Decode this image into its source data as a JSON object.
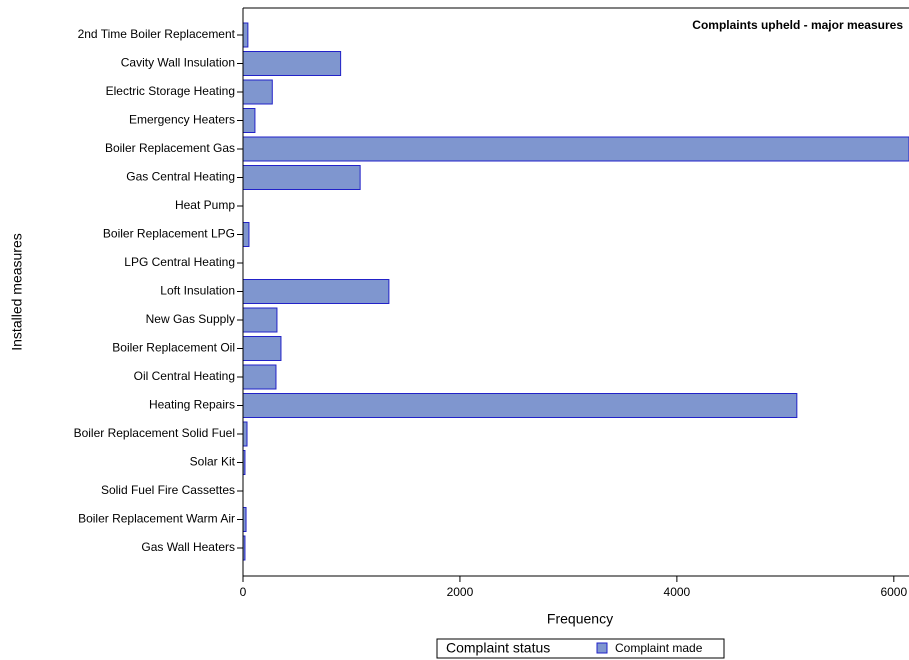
{
  "chart_data": {
    "type": "barh",
    "title": "Complaints upheld - major measures",
    "x_label": "Frequency",
    "y_label": "Installed measures",
    "categories": [
      "2nd Time Boiler Replacement",
      "Cavity Wall Insulation",
      "Electric Storage Heating",
      "Emergency Heaters",
      "Boiler Replacement Gas",
      "Gas Central Heating",
      "Heat Pump",
      "Boiler Replacement LPG",
      "LPG Central Heating",
      "Loft Insulation",
      "New Gas Supply",
      "Boiler Replacement Oil",
      "Oil Central Heating",
      "Heating Repairs",
      "Boiler Replacement Solid Fuel",
      "Solar Kit",
      "Solid Fuel Fire Cassettes",
      "Boiler Replacement Warm Air",
      "Gas Wall Heaters"
    ],
    "legend_title": "Complaint status",
    "series": [
      {
        "name": "Complaint made",
        "color": "#7f96cf",
        "values": [
          45,
          900,
          270,
          110,
          6140,
          1080,
          0,
          55,
          0,
          1345,
          313,
          350,
          304,
          5106,
          37,
          18,
          0,
          28,
          18
        ]
      }
    ],
    "xlim": [
      0,
      6140
    ],
    "xticks": [
      0,
      2000,
      4000,
      6000
    ],
    "grid": false,
    "legend_position": "bottom"
  }
}
